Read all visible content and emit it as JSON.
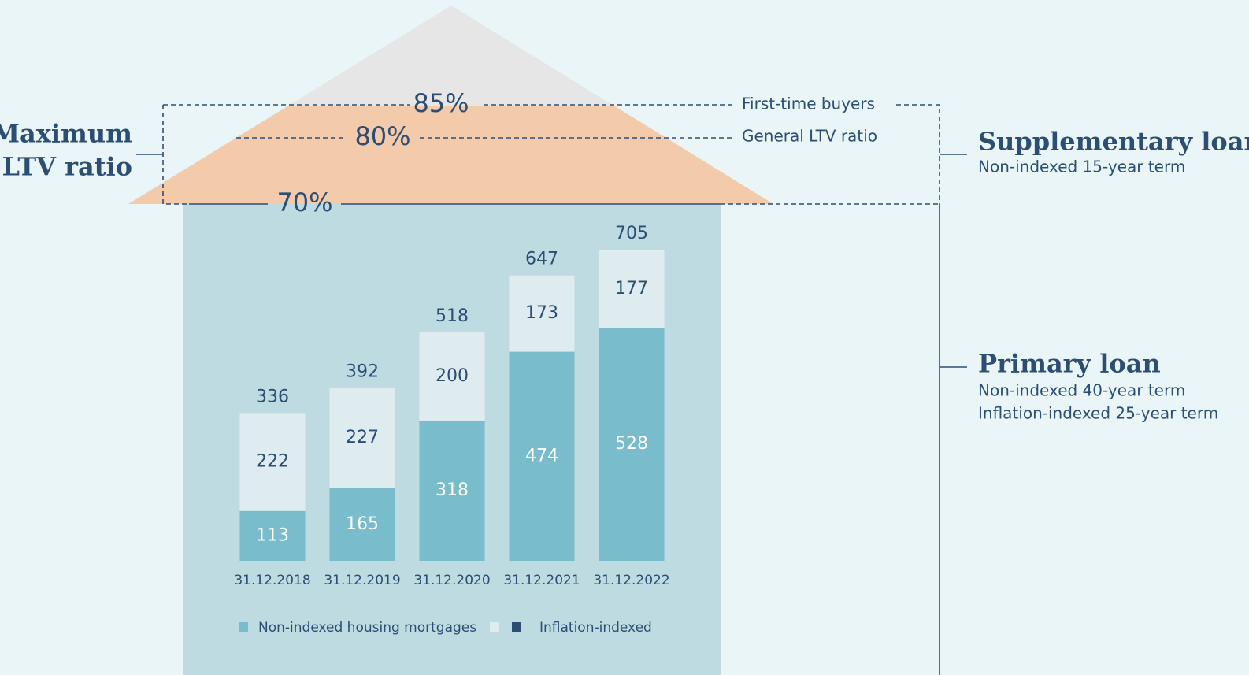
{
  "chart_data": {
    "type": "bar",
    "stacked": true,
    "categories": [
      "31.12.2018",
      "31.12.2019",
      "31.12.2020",
      "31.12.2021",
      "31.12.2022"
    ],
    "series": [
      {
        "name": "Non-indexed housing mortgages",
        "color": "#79bccb",
        "label_color": "#ffffff",
        "values": [
          113,
          165,
          318,
          474,
          528
        ]
      },
      {
        "name": "Inflation-indexed",
        "color": "#deecf0",
        "label_color": "#2d4e74",
        "values": [
          222,
          227,
          200,
          173,
          177
        ]
      }
    ],
    "totals": [
      336,
      392,
      518,
      647,
      705
    ],
    "annotations": {
      "ltv_title": [
        "Maximum",
        "LTV ratio"
      ],
      "levels": [
        {
          "label": "85%",
          "name": "First-time buyers"
        },
        {
          "label": "80%",
          "name": "General LTV ratio"
        },
        {
          "label": "70%"
        }
      ],
      "supplementary": {
        "title": "Supplementary loans",
        "lines": [
          "Non-indexed 15-year term"
        ]
      },
      "primary": {
        "title": "Primary loan",
        "lines": [
          "Non-indexed 40-year term",
          "Inflation-indexed 25-year term"
        ]
      }
    }
  }
}
